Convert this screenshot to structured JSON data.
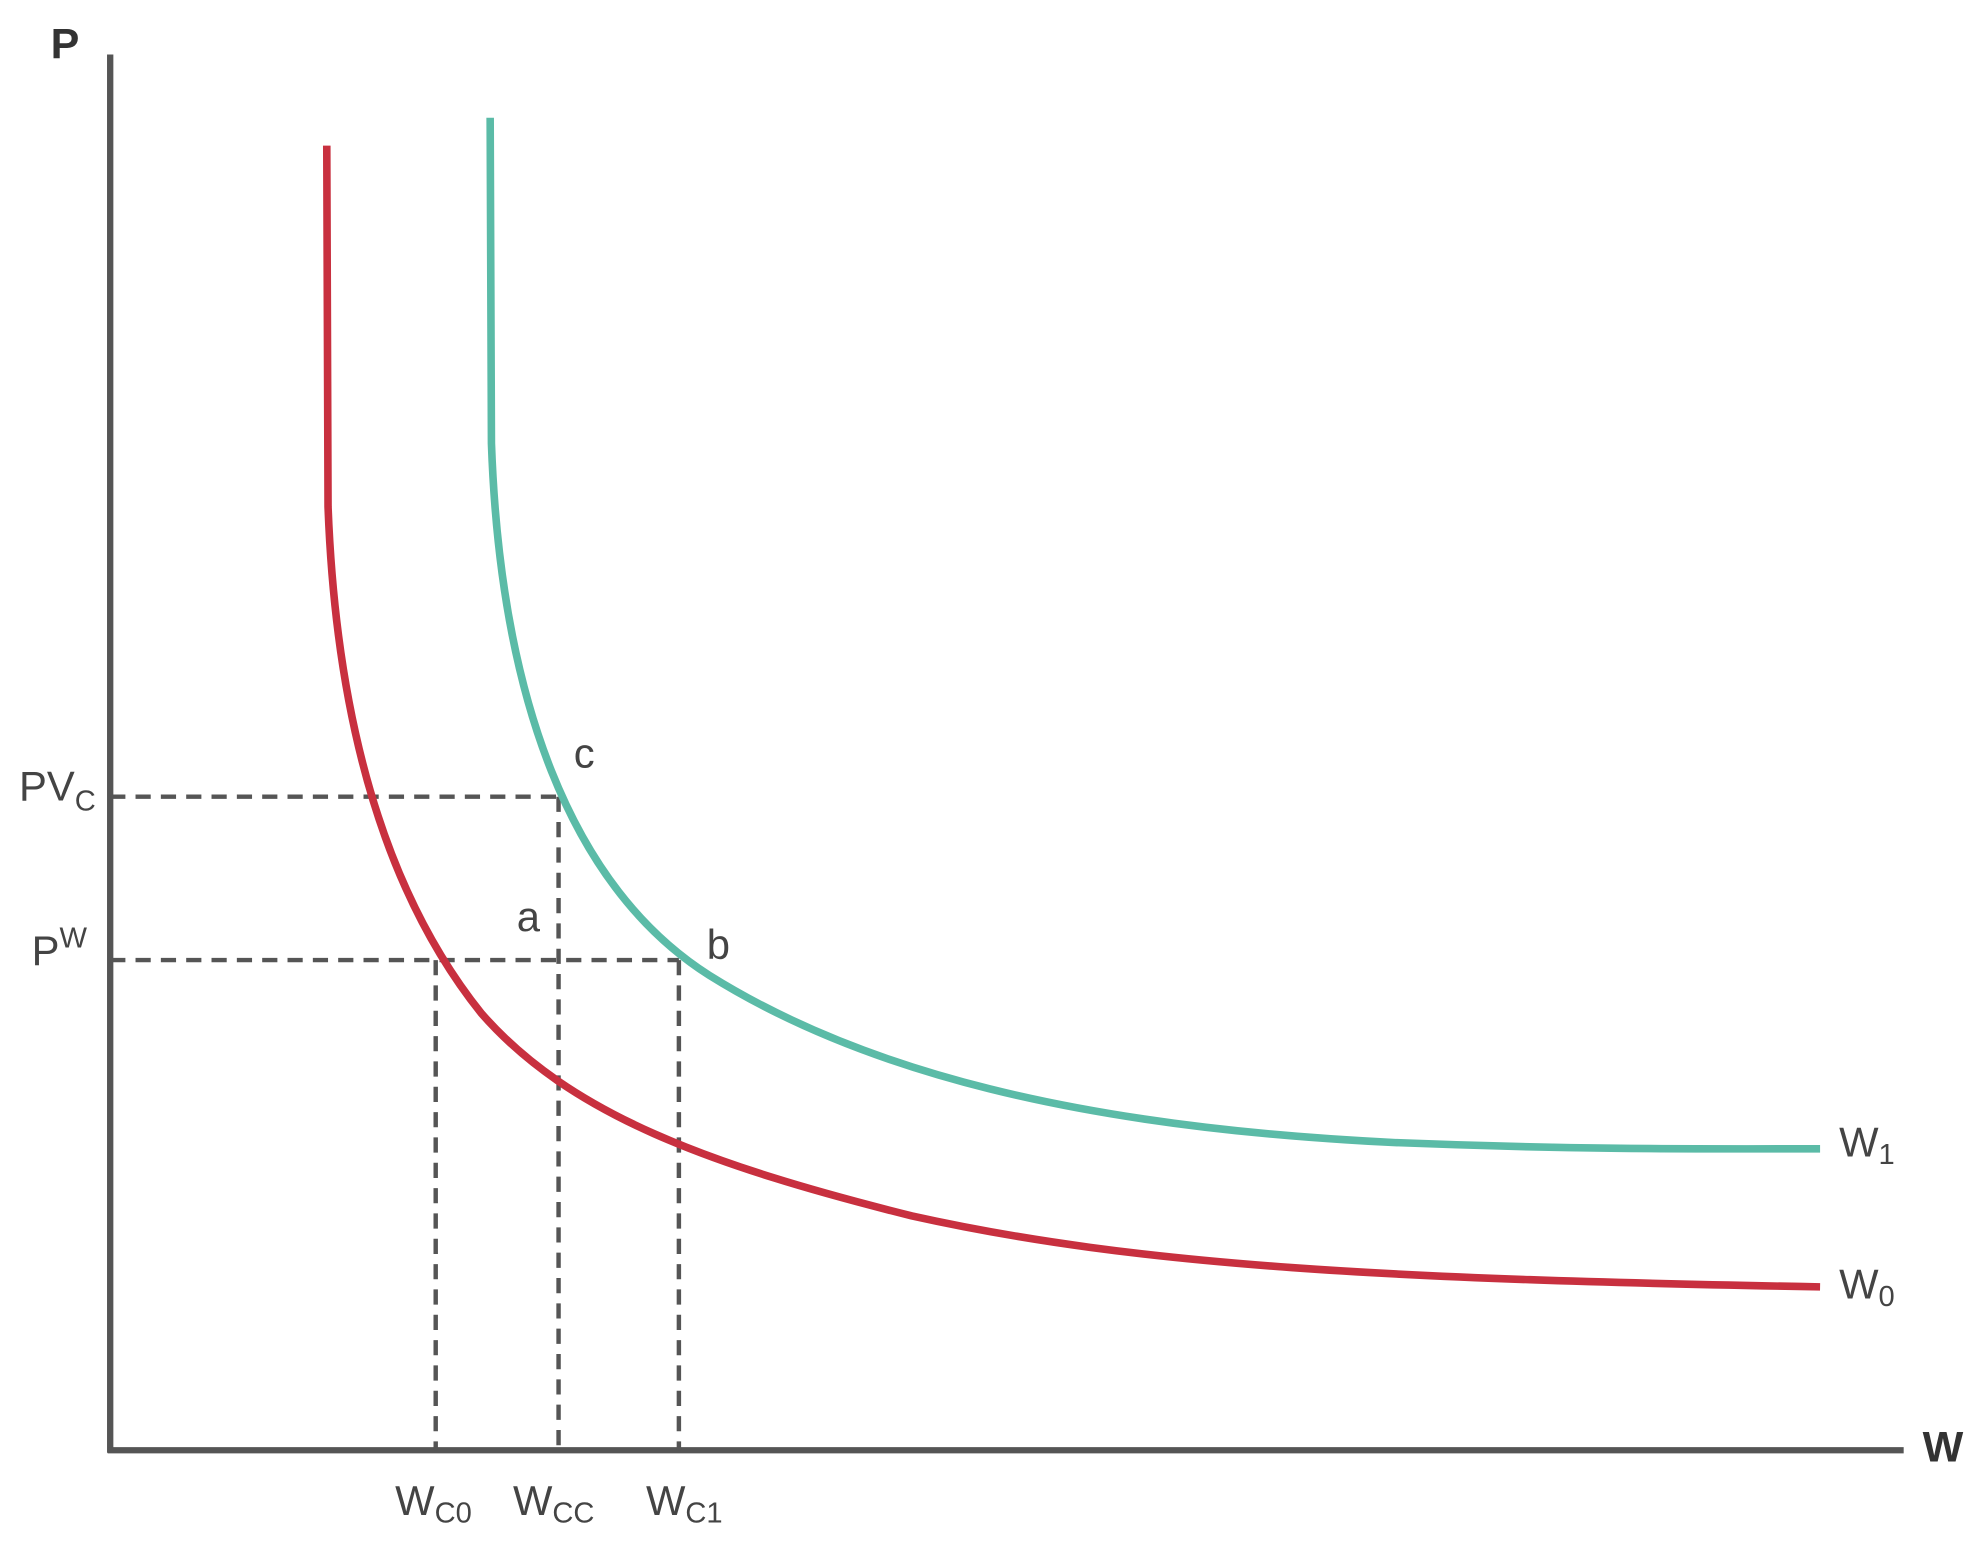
{
  "axes": {
    "y_label": "P",
    "x_label": "W"
  },
  "price_labels": [
    {
      "text": "PV",
      "sub": "C"
    },
    {
      "text": "P",
      "sup": "W"
    }
  ],
  "point_labels": [
    "c",
    "a",
    "b"
  ],
  "curve_labels": [
    {
      "text": "W",
      "sub": "1"
    },
    {
      "text": "W",
      "sub": "0"
    }
  ],
  "quantity_labels": [
    {
      "text": "W",
      "sub": "C0"
    },
    {
      "text": "W",
      "sub": "CC"
    },
    {
      "text": "W",
      "sub": "C1"
    }
  ]
}
